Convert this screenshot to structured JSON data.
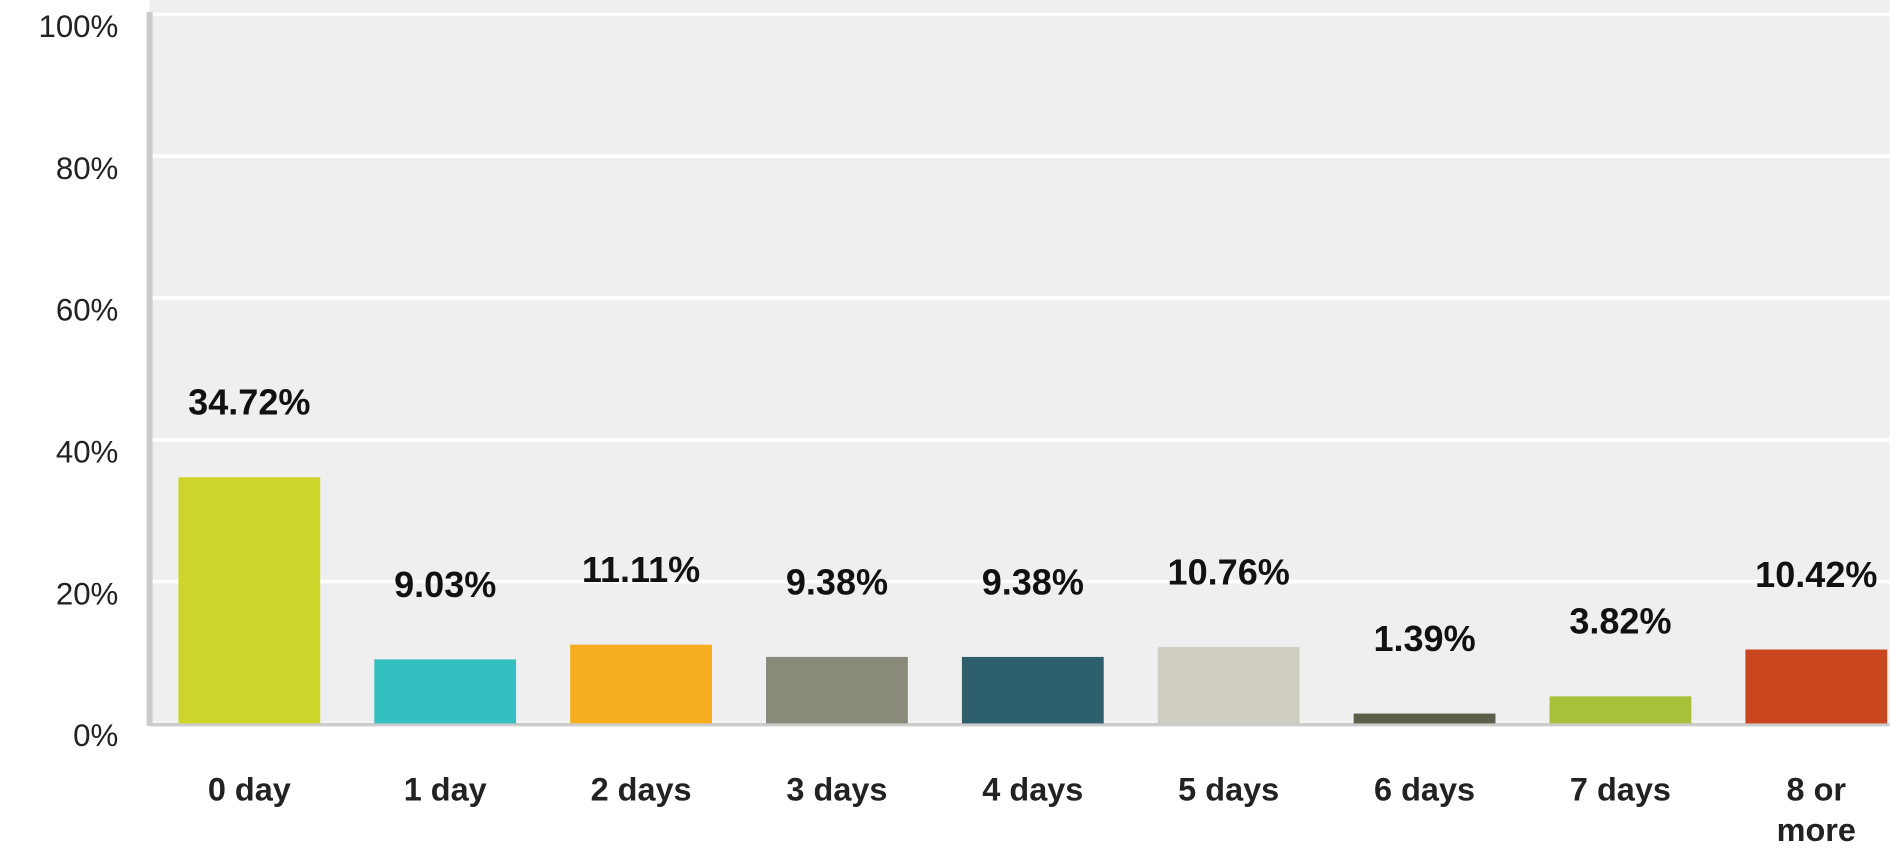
{
  "chart_data": {
    "type": "bar",
    "categories": [
      "0 day",
      "1 day",
      "2 days",
      "3 days",
      "4 days",
      "5 days",
      "6 days",
      "7 days",
      "8 or more"
    ],
    "values": [
      34.72,
      9.03,
      11.11,
      9.38,
      9.38,
      10.76,
      1.39,
      3.82,
      10.42
    ],
    "value_labels": [
      "34.72%",
      "9.03%",
      "11.11%",
      "9.38%",
      "9.38%",
      "10.76%",
      "1.39%",
      "3.82%",
      "10.42%"
    ],
    "colors": [
      "#cdd42a",
      "#34bfc1",
      "#f6ae1e",
      "#8a8a7a",
      "#2e5f6d",
      "#cfcdbf",
      "#5a5f4a",
      "#a8c13a",
      "#c9461e"
    ],
    "ylim": [
      0,
      100
    ],
    "yticks": [
      {
        "value": 0,
        "label": "0%"
      },
      {
        "value": 20,
        "label": "20%"
      },
      {
        "value": 40,
        "label": "40%"
      },
      {
        "value": 60,
        "label": "60%"
      },
      {
        "value": 80,
        "label": "80%"
      },
      {
        "value": 100,
        "label": "100%"
      }
    ],
    "grid": true
  }
}
